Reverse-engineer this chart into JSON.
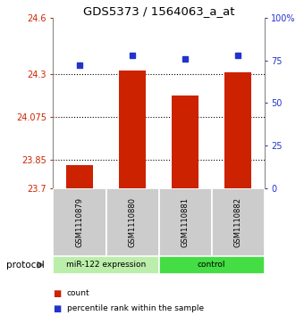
{
  "title": "GDS5373 / 1564063_a_at",
  "samples": [
    "GSM1110879",
    "GSM1110880",
    "GSM1110881",
    "GSM1110882"
  ],
  "bar_values": [
    23.82,
    24.32,
    24.19,
    24.31
  ],
  "dot_values": [
    72,
    78,
    76,
    78
  ],
  "ylim_left": [
    23.7,
    24.6
  ],
  "ylim_right": [
    0,
    100
  ],
  "yticks_left": [
    23.7,
    23.85,
    24.075,
    24.3,
    24.6
  ],
  "ytick_labels_left": [
    "23.7",
    "23.85",
    "24.075",
    "24.3",
    "24.6"
  ],
  "yticks_right": [
    0,
    25,
    50,
    75,
    100
  ],
  "ytick_labels_right": [
    "0",
    "25",
    "50",
    "75",
    "100%"
  ],
  "hlines": [
    23.85,
    24.075,
    24.3
  ],
  "bar_color": "#cc2200",
  "dot_color": "#2233cc",
  "group_labels": [
    "miR-122 expression",
    "control"
  ],
  "group_colors_left": "#bbeeaa",
  "group_colors_right": "#44dd44",
  "group_ranges": [
    [
      0,
      2
    ],
    [
      2,
      4
    ]
  ],
  "protocol_label": "protocol",
  "legend_items": [
    {
      "label": "count",
      "color": "#cc2200"
    },
    {
      "label": "percentile rank within the sample",
      "color": "#2233cc"
    }
  ],
  "bar_baseline": 23.7,
  "background_color": "#ffffff",
  "sample_box_color": "#cccccc",
  "bar_width": 0.5
}
